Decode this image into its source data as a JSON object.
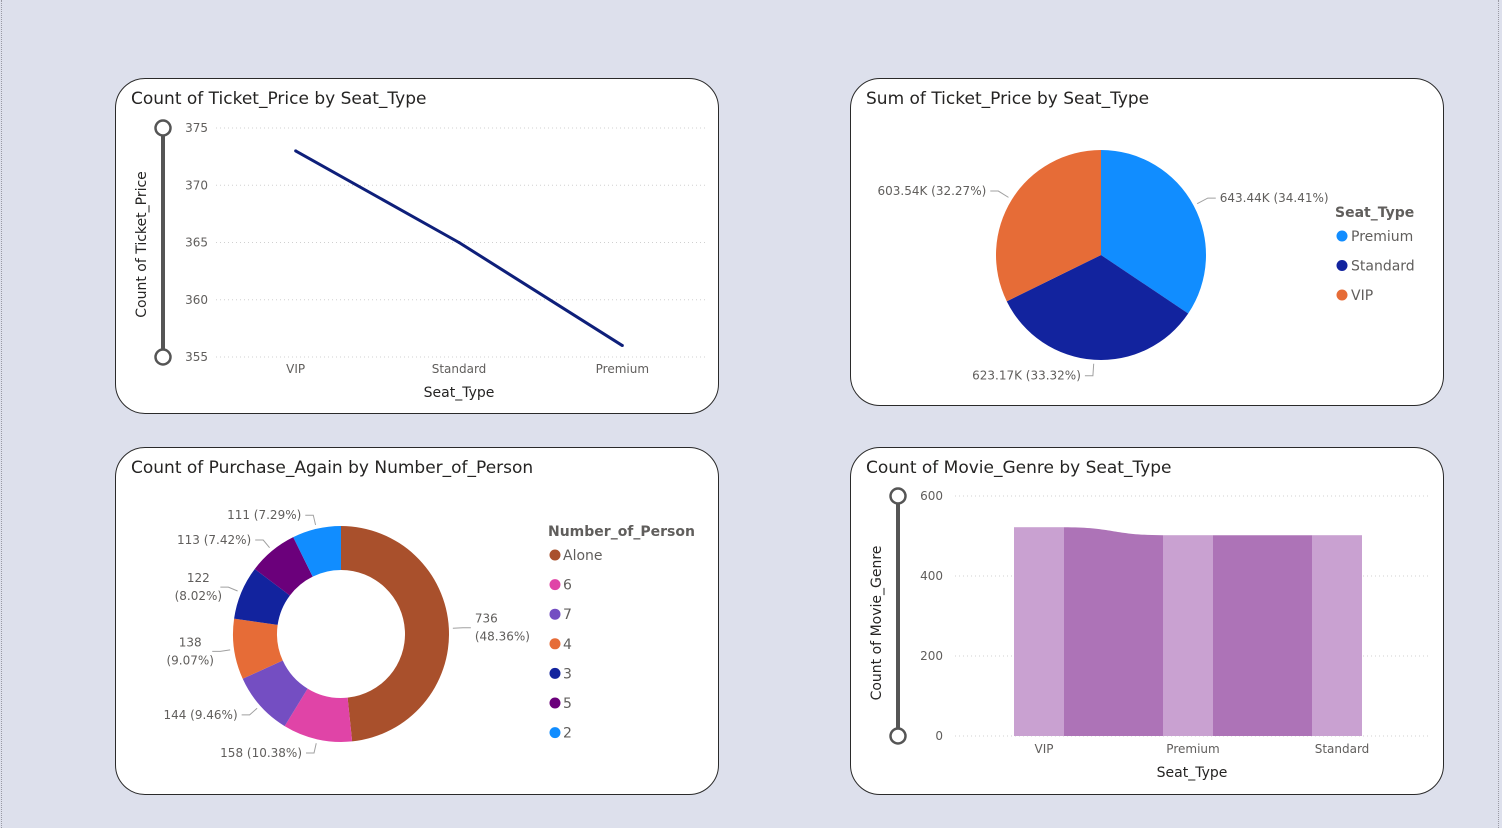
{
  "charts": [
    {
      "type": "line",
      "title": "Count of Ticket_Price by Seat_Type",
      "xlabel": "Seat_Type",
      "ylabel": "Count of Ticket_Price",
      "categories": [
        "VIP",
        "Standard",
        "Premium"
      ],
      "values": [
        373,
        365,
        356
      ],
      "yticks": [
        355,
        360,
        365,
        370,
        375
      ],
      "ylim": [
        355,
        375
      ],
      "grid": true,
      "color": "#0e1f7a"
    },
    {
      "type": "pie",
      "title": "Sum of Ticket_Price by Seat_Type",
      "legend_title": "Seat_Type",
      "legend_position": "right",
      "slices": [
        {
          "name": "Premium",
          "value": 643.44,
          "label": "643.44K (34.41%)",
          "color": "#118dff"
        },
        {
          "name": "Standard",
          "value": 623.17,
          "label": "623.17K (33.32%)",
          "color": "#12239e"
        },
        {
          "name": "VIP",
          "value": 603.54,
          "label": "603.54K (32.27%)",
          "color": "#e66c37"
        }
      ]
    },
    {
      "type": "donut",
      "title": "Count of Purchase_Again by Number_of_Person",
      "legend_title": "Number_of_Person",
      "legend_position": "right",
      "slices": [
        {
          "name": "Alone",
          "value": 736,
          "label": [
            "736",
            "(48.36%)"
          ],
          "color": "#a9502c"
        },
        {
          "name": "6",
          "value": 158,
          "label": [
            "158 (10.38%)"
          ],
          "color": "#e044a7"
        },
        {
          "name": "7",
          "value": 144,
          "label": [
            "144 (9.46%)"
          ],
          "color": "#744ec2"
        },
        {
          "name": "4",
          "value": 138,
          "label": [
            "138",
            "(9.07%)"
          ],
          "color": "#e66c37"
        },
        {
          "name": "3",
          "value": 122,
          "label": [
            "122",
            "(8.02%)"
          ],
          "color": "#12239e"
        },
        {
          "name": "5",
          "value": 113,
          "label": [
            "113 (7.42%)"
          ],
          "color": "#6b007b"
        },
        {
          "name": "2",
          "value": 111,
          "label": [
            "111 (7.29%)"
          ],
          "color": "#118dff"
        }
      ]
    },
    {
      "type": "ribbon",
      "title": "Count of Movie_Genre by Seat_Type",
      "xlabel": "Seat_Type",
      "ylabel": "Count of Movie_Genre",
      "categories": [
        "VIP",
        "Premium",
        "Standard"
      ],
      "values": [
        522,
        502,
        502
      ],
      "yticks": [
        0,
        200,
        400,
        600
      ],
      "ylim": [
        0,
        600
      ],
      "grid": true,
      "bar_color": "#c9a1d1",
      "ribbon_color": "#ad73b7"
    }
  ]
}
